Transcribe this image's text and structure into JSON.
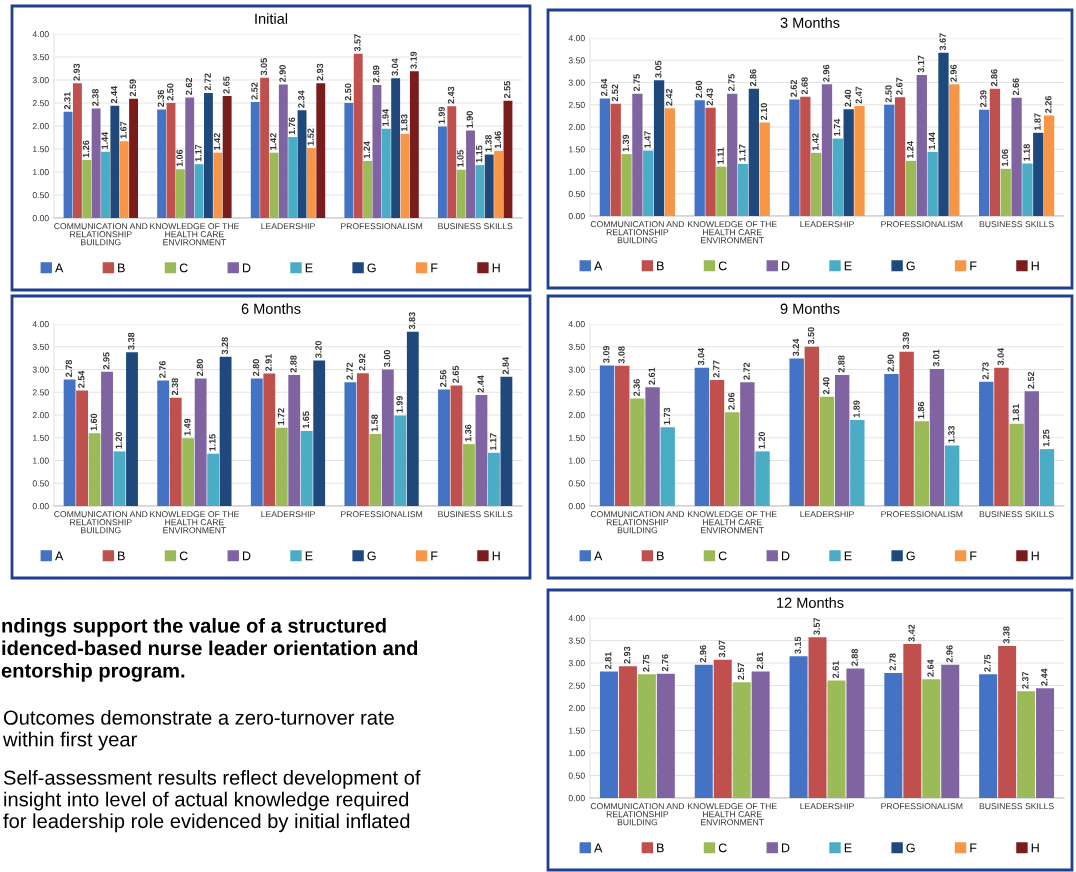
{
  "chart_data": [
    {
      "type": "bar",
      "title": "Initial",
      "categories": [
        "COMMUNICATION AND\nRELATIONSHIP\nBUILDING",
        "KNOWLEDGE OF THE\nHEALTH CARE\nENVIRONMENT",
        "LEADERSHIP",
        "PROFESSIONALISM",
        "BUSINESS SKILLS"
      ],
      "ylim": [
        0,
        4
      ],
      "yticks": [
        {
          "value": 0,
          "label": "0.00"
        },
        {
          "value": 0.5,
          "label": "0.50"
        },
        {
          "value": 1,
          "label": "1.00"
        },
        {
          "value": 1.5,
          "label": "1.50"
        },
        {
          "value": 2,
          "label": "2.00"
        },
        {
          "value": 2.5,
          "label": "2.50"
        },
        {
          "value": 3,
          "label": "3.00"
        },
        {
          "value": 3.5,
          "label": "3.50"
        },
        {
          "value": 4,
          "label": "4.00"
        }
      ],
      "grid": "y",
      "legend": "bottom",
      "series": [
        {
          "name": "A",
          "color": "#4472c4",
          "values": [
            2.31,
            2.36,
            2.52,
            2.5,
            1.99
          ],
          "value_labels": [
            "2.31",
            "2.36",
            "2.52",
            "2.50",
            "1.99"
          ]
        },
        {
          "name": "B",
          "color": "#c0504d",
          "values": [
            2.93,
            2.5,
            3.05,
            3.57,
            2.43
          ],
          "value_labels": [
            "2.93",
            "2.50",
            "3.05",
            "3.57",
            "2.43"
          ]
        },
        {
          "name": "C",
          "color": "#9bbb59",
          "values": [
            1.26,
            1.06,
            1.42,
            1.24,
            1.05
          ],
          "value_labels": [
            "1.26",
            "1.06",
            "1.42",
            "1.24",
            "1.05"
          ]
        },
        {
          "name": "D",
          "color": "#8064a2",
          "values": [
            2.38,
            2.62,
            2.9,
            2.89,
            1.9
          ],
          "value_labels": [
            "2.38",
            "2.62",
            "2.90",
            "2.89",
            "1.90"
          ]
        },
        {
          "name": "E",
          "color": "#4bacc6",
          "values": [
            1.44,
            1.17,
            1.76,
            1.94,
            1.15
          ],
          "value_labels": [
            "1.44",
            "1.17",
            "1.76",
            "1.94",
            "1.15"
          ]
        },
        {
          "name": "G",
          "color": "#1f497d",
          "values": [
            2.44,
            2.72,
            2.34,
            3.04,
            1.38
          ],
          "value_labels": [
            "2.44",
            "2.72",
            "2.34",
            "3.04",
            "1.38"
          ]
        },
        {
          "name": "F",
          "color": "#f79646",
          "values": [
            1.67,
            1.42,
            1.52,
            1.83,
            1.46
          ],
          "value_labels": [
            "1.67",
            "1.42",
            "1.52",
            "1.83",
            "1.46"
          ]
        },
        {
          "name": "H",
          "color": "#7b1c1c",
          "values": [
            2.59,
            2.65,
            2.93,
            3.19,
            2.55
          ],
          "value_labels": [
            "2.59",
            "2.65",
            "2.93",
            "3.19",
            "2.55"
          ]
        }
      ]
    },
    {
      "type": "bar",
      "title": "3 Months",
      "categories": [
        "COMMUNICATION AND\nRELATIONSHIP\nBUILDING",
        "KNOWLEDGE OF THE\nHEALTH CARE\nENVIRONMENT",
        "LEADERSHIP",
        "PROFESSIONALISM",
        "BUSINESS SKILLS"
      ],
      "ylim": [
        0,
        4
      ],
      "yticks": [
        {
          "value": 0,
          "label": "0.00"
        },
        {
          "value": 0.5,
          "label": "0.50"
        },
        {
          "value": 1,
          "label": "1.00"
        },
        {
          "value": 1.5,
          "label": "1.50"
        },
        {
          "value": 2,
          "label": "2.00"
        },
        {
          "value": 2.5,
          "label": "2.50"
        },
        {
          "value": 3,
          "label": "3.00"
        },
        {
          "value": 3.5,
          "label": "3.50"
        },
        {
          "value": 4,
          "label": "4.00"
        }
      ],
      "grid": "y",
      "legend": "bottom",
      "series": [
        {
          "name": "A",
          "color": "#4472c4",
          "values": [
            2.64,
            2.6,
            2.62,
            2.5,
            2.39
          ],
          "value_labels": [
            "2.64",
            "2.60",
            "2.62",
            "2.50",
            "2.39"
          ]
        },
        {
          "name": "B",
          "color": "#c0504d",
          "values": [
            2.52,
            2.43,
            2.68,
            2.67,
            2.86
          ],
          "value_labels": [
            "2.52",
            "2.43",
            "2.68",
            "2.67",
            "2.86"
          ]
        },
        {
          "name": "C",
          "color": "#9bbb59",
          "values": [
            1.39,
            1.11,
            1.42,
            1.24,
            1.06
          ],
          "value_labels": [
            "1.39",
            "1.11",
            "1.42",
            "1.24",
            "1.06"
          ]
        },
        {
          "name": "D",
          "color": "#8064a2",
          "values": [
            2.75,
            2.75,
            2.96,
            3.17,
            2.66
          ],
          "value_labels": [
            "2.75",
            "2.75",
            "2.96",
            "3.17",
            "2.66"
          ]
        },
        {
          "name": "E",
          "color": "#4bacc6",
          "values": [
            1.47,
            1.17,
            1.74,
            1.44,
            1.18
          ],
          "value_labels": [
            "1.47",
            "1.17",
            "1.74",
            "1.44",
            "1.18"
          ]
        },
        {
          "name": "G",
          "color": "#1f497d",
          "values": [
            3.05,
            2.86,
            2.4,
            3.67,
            1.87
          ],
          "value_labels": [
            "3.05",
            "2.86",
            "2.40",
            "3.67",
            "1.87"
          ]
        },
        {
          "name": "F",
          "color": "#f79646",
          "values": [
            2.42,
            2.1,
            2.47,
            2.96,
            2.26
          ],
          "value_labels": [
            "2.42",
            "2.10",
            "2.47",
            "2.96",
            "2.26"
          ]
        },
        {
          "name": "H",
          "color": "#7b1c1c",
          "values": [
            null,
            null,
            null,
            null,
            null
          ]
        }
      ]
    },
    {
      "type": "bar",
      "title": "6 Months",
      "categories": [
        "COMMUNICATION AND\nRELATIONSHIP\nBUILDING",
        "KNOWLEDGE OF THE\nHEALTH CARE\nENVIRONMENT",
        "LEADERSHIP",
        "PROFESSIONALISM",
        "BUSINESS SKILLS"
      ],
      "ylim": [
        0,
        4
      ],
      "yticks": [
        {
          "value": 0,
          "label": "0.00"
        },
        {
          "value": 0.5,
          "label": "0.50"
        },
        {
          "value": 1,
          "label": "1.00"
        },
        {
          "value": 1.5,
          "label": "1.50"
        },
        {
          "value": 2,
          "label": "2.00"
        },
        {
          "value": 2.5,
          "label": "2.50"
        },
        {
          "value": 3,
          "label": "3.00"
        },
        {
          "value": 3.5,
          "label": "3.50"
        },
        {
          "value": 4,
          "label": "4.00"
        }
      ],
      "grid": "y",
      "legend": "bottom",
      "series": [
        {
          "name": "A",
          "color": "#4472c4",
          "values": [
            2.78,
            2.76,
            2.8,
            2.72,
            2.56
          ],
          "value_labels": [
            "2.78",
            "2.76",
            "2.80",
            "2.72",
            "2.56"
          ]
        },
        {
          "name": "B",
          "color": "#c0504d",
          "values": [
            2.54,
            2.38,
            2.91,
            2.92,
            2.65
          ],
          "value_labels": [
            "2.54",
            "2.38",
            "2.91",
            "2.92",
            "2.65"
          ]
        },
        {
          "name": "C",
          "color": "#9bbb59",
          "values": [
            1.6,
            1.49,
            1.72,
            1.58,
            1.36
          ],
          "value_labels": [
            "1.60",
            "1.49",
            "1.72",
            "1.58",
            "1.36"
          ]
        },
        {
          "name": "D",
          "color": "#8064a2",
          "values": [
            2.95,
            2.8,
            2.88,
            3.0,
            2.44
          ],
          "value_labels": [
            "2.95",
            "2.80",
            "2.88",
            "3.00",
            "2.44"
          ]
        },
        {
          "name": "E",
          "color": "#4bacc6",
          "values": [
            1.2,
            1.15,
            1.65,
            1.99,
            1.17
          ],
          "value_labels": [
            "1.20",
            "1.15",
            "1.65",
            "1.99",
            "1.17"
          ]
        },
        {
          "name": "G",
          "color": "#1f497d",
          "values": [
            3.38,
            3.28,
            3.2,
            3.83,
            2.84
          ],
          "value_labels": [
            "3.38",
            "3.28",
            "3.20",
            "3.83",
            "2.84"
          ]
        },
        {
          "name": "F",
          "color": "#f79646",
          "values": [
            null,
            null,
            null,
            null,
            null
          ]
        },
        {
          "name": "H",
          "color": "#7b1c1c",
          "values": [
            null,
            null,
            null,
            null,
            null
          ]
        }
      ]
    },
    {
      "type": "bar",
      "title": "9 Months",
      "categories": [
        "COMMUNICATION AND\nRELATIONSHIP\nBUILDING",
        "KNOWLEDGE OF THE\nHEALTH CARE\nENVIRONMENT",
        "LEADERSHIP",
        "PROFESSIONALISM",
        "BUSINESS SKILLS"
      ],
      "ylim": [
        0,
        4
      ],
      "yticks": [
        {
          "value": 0,
          "label": "0.00"
        },
        {
          "value": 0.5,
          "label": "0.50"
        },
        {
          "value": 1,
          "label": "1.00"
        },
        {
          "value": 1.5,
          "label": "1.50"
        },
        {
          "value": 2,
          "label": "2.00"
        },
        {
          "value": 2.5,
          "label": "2.50"
        },
        {
          "value": 3,
          "label": "3.00"
        },
        {
          "value": 3.5,
          "label": "3.50"
        },
        {
          "value": 4,
          "label": "4.00"
        }
      ],
      "grid": "y",
      "legend": "bottom",
      "series": [
        {
          "name": "A",
          "color": "#4472c4",
          "values": [
            3.09,
            3.04,
            3.24,
            2.9,
            2.73
          ],
          "value_labels": [
            "3.09",
            "3.04",
            "3.24",
            "2.90",
            "2.73"
          ]
        },
        {
          "name": "B",
          "color": "#c0504d",
          "values": [
            3.08,
            2.77,
            3.5,
            3.39,
            3.04
          ],
          "value_labels": [
            "3.08",
            "2.77",
            "3.50",
            "3.39",
            "3.04"
          ]
        },
        {
          "name": "C",
          "color": "#9bbb59",
          "values": [
            2.36,
            2.06,
            2.4,
            1.86,
            1.81
          ],
          "value_labels": [
            "2.36",
            "2.06",
            "2.40",
            "1.86",
            "1.81"
          ]
        },
        {
          "name": "D",
          "color": "#8064a2",
          "values": [
            2.61,
            2.72,
            2.88,
            3.01,
            2.52
          ],
          "value_labels": [
            "2.61",
            "2.72",
            "2.88",
            "3.01",
            "2.52"
          ]
        },
        {
          "name": "E",
          "color": "#4bacc6",
          "values": [
            1.73,
            1.2,
            1.89,
            1.33,
            1.25
          ],
          "value_labels": [
            "1.73",
            "1.20",
            "1.89",
            "1.33",
            "1.25"
          ]
        },
        {
          "name": "G",
          "color": "#1f497d",
          "values": [
            null,
            null,
            null,
            null,
            null
          ]
        },
        {
          "name": "F",
          "color": "#f79646",
          "values": [
            null,
            null,
            null,
            null,
            null
          ]
        },
        {
          "name": "H",
          "color": "#7b1c1c",
          "values": [
            null,
            null,
            null,
            null,
            null
          ]
        }
      ]
    },
    {
      "type": "other",
      "title": "ndings support the value of a structured\nidenced-based nurse leader orientation and\nentorship program.",
      "annotations": [
        "Outcomes demonstrate a zero-turnover rate\nwithin first year",
        "Self-assessment results reflect development of\ninsight into level of actual knowledge required\nfor leadership role evidenced by initial inflated"
      ]
    },
    {
      "type": "bar",
      "title": "12 Months",
      "categories": [
        "COMMUNICATION AND\nRELATIONSHIP\nBUILDING",
        "KNOWLEDGE OF THE\nHEALTH CARE\nENVIRONMENT",
        "LEADERSHIP",
        "PROFESSIONALISM",
        "BUSINESS SKILLS"
      ],
      "ylim": [
        0,
        4
      ],
      "yticks": [
        {
          "value": 0,
          "label": "0.00"
        },
        {
          "value": 0.5,
          "label": "0.50"
        },
        {
          "value": 1,
          "label": "1.00"
        },
        {
          "value": 1.5,
          "label": "1.50"
        },
        {
          "value": 2,
          "label": "2.00"
        },
        {
          "value": 2.5,
          "label": "2.50"
        },
        {
          "value": 3,
          "label": "3.00"
        },
        {
          "value": 3.5,
          "label": "3.50"
        },
        {
          "value": 4,
          "label": "4.00"
        }
      ],
      "grid": "y",
      "legend": "bottom",
      "series": [
        {
          "name": "A",
          "color": "#4472c4",
          "values": [
            2.81,
            2.96,
            3.15,
            2.78,
            2.75
          ],
          "value_labels": [
            "2.81",
            "2.96",
            "3.15",
            "2.78",
            "2.75"
          ]
        },
        {
          "name": "B",
          "color": "#c0504d",
          "values": [
            2.93,
            3.07,
            3.57,
            3.42,
            3.38
          ],
          "value_labels": [
            "2.93",
            "3.07",
            "3.57",
            "3.42",
            "3.38"
          ]
        },
        {
          "name": "C",
          "color": "#9bbb59",
          "values": [
            2.75,
            2.57,
            2.61,
            2.64,
            2.37
          ],
          "value_labels": [
            "2.75",
            "2.57",
            "2.61",
            "2.64",
            "2.37"
          ]
        },
        {
          "name": "D",
          "color": "#8064a2",
          "values": [
            2.76,
            2.81,
            2.88,
            2.96,
            2.44
          ],
          "value_labels": [
            "2.76",
            "2.81",
            "2.88",
            "2.96",
            "2.44"
          ]
        },
        {
          "name": "E",
          "color": "#4bacc6",
          "values": [
            null,
            null,
            null,
            null,
            null
          ]
        },
        {
          "name": "G",
          "color": "#1f497d",
          "values": [
            null,
            null,
            null,
            null,
            null
          ]
        },
        {
          "name": "F",
          "color": "#f79646",
          "values": [
            null,
            null,
            null,
            null,
            null
          ]
        },
        {
          "name": "H",
          "color": "#7b1c1c",
          "values": [
            null,
            null,
            null,
            null,
            null
          ]
        }
      ]
    }
  ]
}
